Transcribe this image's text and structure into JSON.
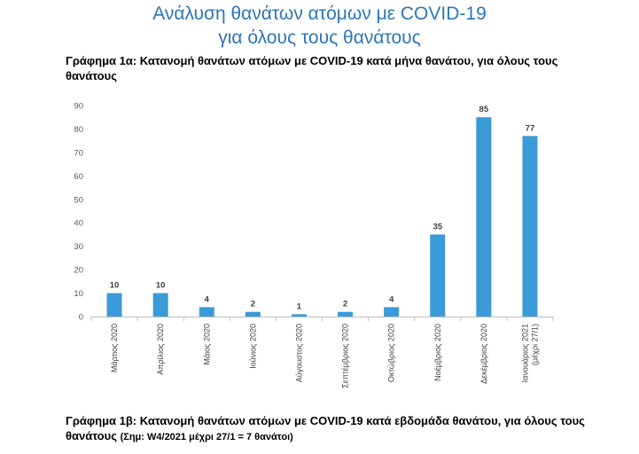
{
  "header": {
    "title_line1": "Ανάλυση θανάτων ατόμων με COVID-19",
    "title_line2": "για όλους τους θανάτους"
  },
  "chart_1a": {
    "caption": "Γράφημα 1α: Κατανομή θανάτων ατόμων με COVID-19 κατά μήνα θανάτου, για όλους τους θανάτους"
  },
  "chart_1b": {
    "caption": "Γράφημα 1β: Κατανομή θανάτων ατόμων με COVID-19 κατά εβδομάδα θανάτου, για όλους τους θανάτους",
    "note": "(Σημ: W4/2021 μέχρι 27/1 = 7 θανάτοι)"
  },
  "chart_data": {
    "type": "bar",
    "title": "",
    "xlabel": "",
    "ylabel": "",
    "categories": [
      "Μάρτιος 2020",
      "Απρίλιος 2020",
      "Μάιος 2020",
      "Ιούνιος 2020",
      "Αύγουστος 2020",
      "Σεπτέμβριος 2020",
      "Οκτώβριος 2020",
      "Νοέμβριος 2020",
      "Δεκέμβριος 2020",
      "Ιανουάριος 2021 (μέχρι 27/1)"
    ],
    "values": [
      10,
      10,
      4,
      2,
      1,
      2,
      4,
      35,
      85,
      77
    ],
    "ylim": [
      0,
      90
    ],
    "yticks": [
      0,
      10,
      20,
      30,
      40,
      50,
      60,
      70,
      80,
      90
    ],
    "bar_color": "#3b9ad8",
    "grid": false,
    "legend": "none"
  }
}
